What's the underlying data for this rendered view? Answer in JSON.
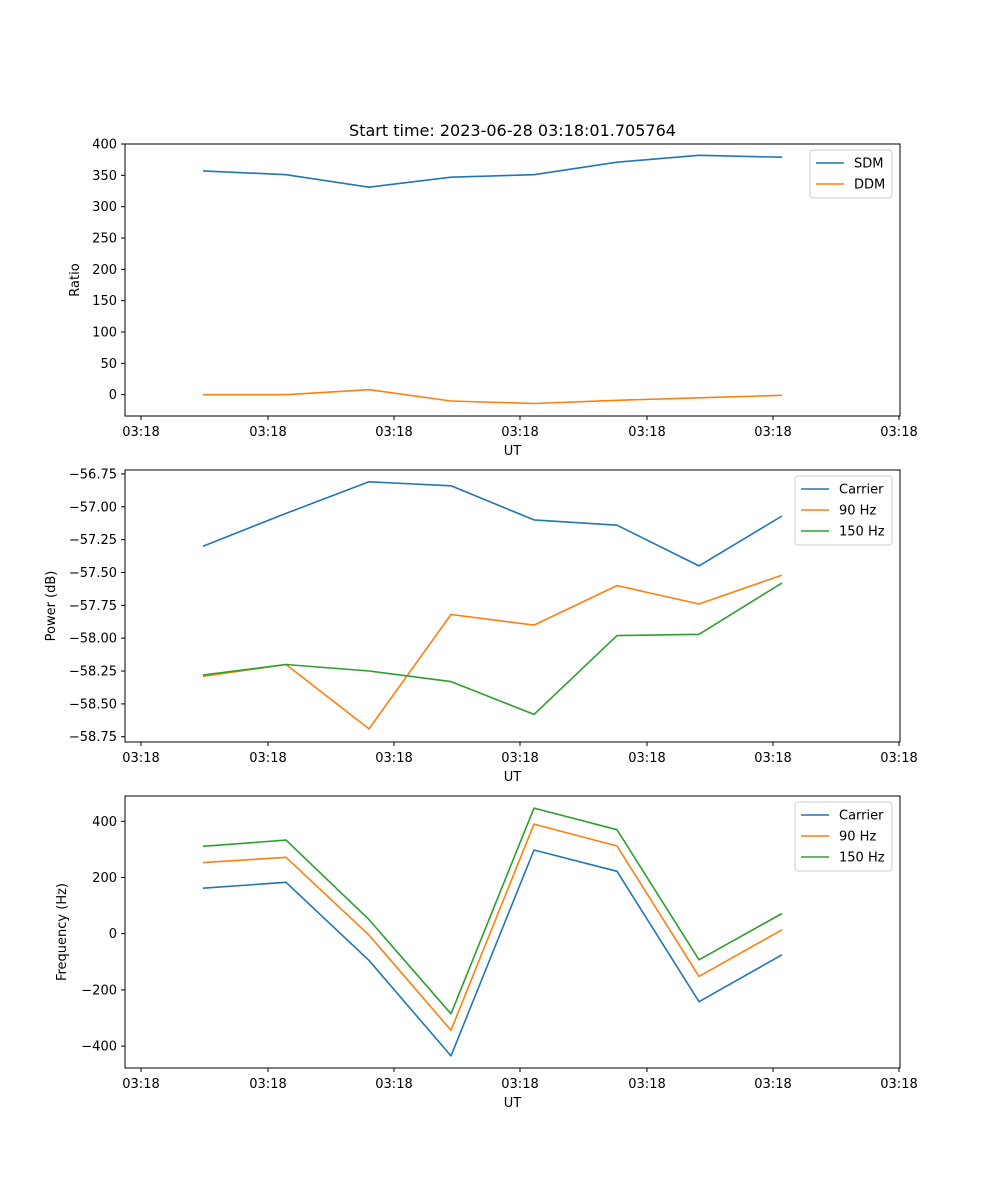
{
  "title": "Start time: 2023-06-28 03:18:01.705764",
  "colors": {
    "blue": "#1f77b4",
    "orange": "#ff7f0e",
    "green": "#2ca02c"
  },
  "chart_data": [
    {
      "type": "line",
      "xlabel": "UT",
      "ylabel": "Ratio",
      "xticks": [
        "03:18",
        "03:18",
        "03:18",
        "03:18",
        "03:18",
        "03:18",
        "03:18"
      ],
      "yticks": [
        "400",
        "350",
        "300",
        "250",
        "200",
        "150",
        "100",
        "50",
        "0"
      ],
      "ylim": [
        -34,
        400
      ],
      "legend": "top-right",
      "series": [
        {
          "name": "SDM",
          "color": "#1f77b4",
          "values": [
            357,
            351,
            331,
            347,
            351,
            371,
            382,
            379
          ]
        },
        {
          "name": "DDM",
          "color": "#ff7f0e",
          "values": [
            0,
            0,
            8,
            -10,
            -14,
            -9,
            -5,
            -1
          ]
        }
      ]
    },
    {
      "type": "line",
      "xlabel": "UT",
      "ylabel": "Power (dB)",
      "xticks": [
        "03:18",
        "03:18",
        "03:18",
        "03:18",
        "03:18",
        "03:18",
        "03:18"
      ],
      "yticks": [
        "−56.75",
        "−57.00",
        "−57.25",
        "−57.50",
        "−57.75",
        "−58.00",
        "−58.25",
        "−58.50",
        "−58.75"
      ],
      "ylim": [
        -58.79,
        -56.72
      ],
      "legend": "top-right",
      "series": [
        {
          "name": "Carrier",
          "color": "#1f77b4",
          "values": [
            -57.3,
            -57.05,
            -56.81,
            -56.84,
            -57.1,
            -57.14,
            -57.45,
            -57.07
          ]
        },
        {
          "name": "90 Hz",
          "color": "#ff7f0e",
          "values": [
            -58.29,
            -58.2,
            -58.69,
            -57.82,
            -57.9,
            -57.6,
            -57.74,
            -57.52
          ]
        },
        {
          "name": "150 Hz",
          "color": "#2ca02c",
          "values": [
            -58.28,
            -58.2,
            -58.25,
            -58.33,
            -58.58,
            -57.98,
            -57.97,
            -57.58
          ]
        }
      ]
    },
    {
      "type": "line",
      "xlabel": "UT",
      "ylabel": "Frequency (Hz)",
      "xticks": [
        "03:18",
        "03:18",
        "03:18",
        "03:18",
        "03:18",
        "03:18",
        "03:18"
      ],
      "yticks": [
        "400",
        "200",
        "0",
        "−200",
        "−400"
      ],
      "ylim": [
        -478,
        490
      ],
      "legend": "top-right",
      "series": [
        {
          "name": "Carrier",
          "color": "#1f77b4",
          "values": [
            162,
            183,
            -95,
            -435,
            298,
            222,
            -242,
            -75
          ]
        },
        {
          "name": "90 Hz",
          "color": "#ff7f0e",
          "values": [
            253,
            272,
            -5,
            -344,
            390,
            312,
            -152,
            14
          ]
        },
        {
          "name": "150 Hz",
          "color": "#2ca02c",
          "values": [
            311,
            333,
            50,
            -285,
            447,
            370,
            -93,
            72
          ]
        }
      ]
    }
  ]
}
